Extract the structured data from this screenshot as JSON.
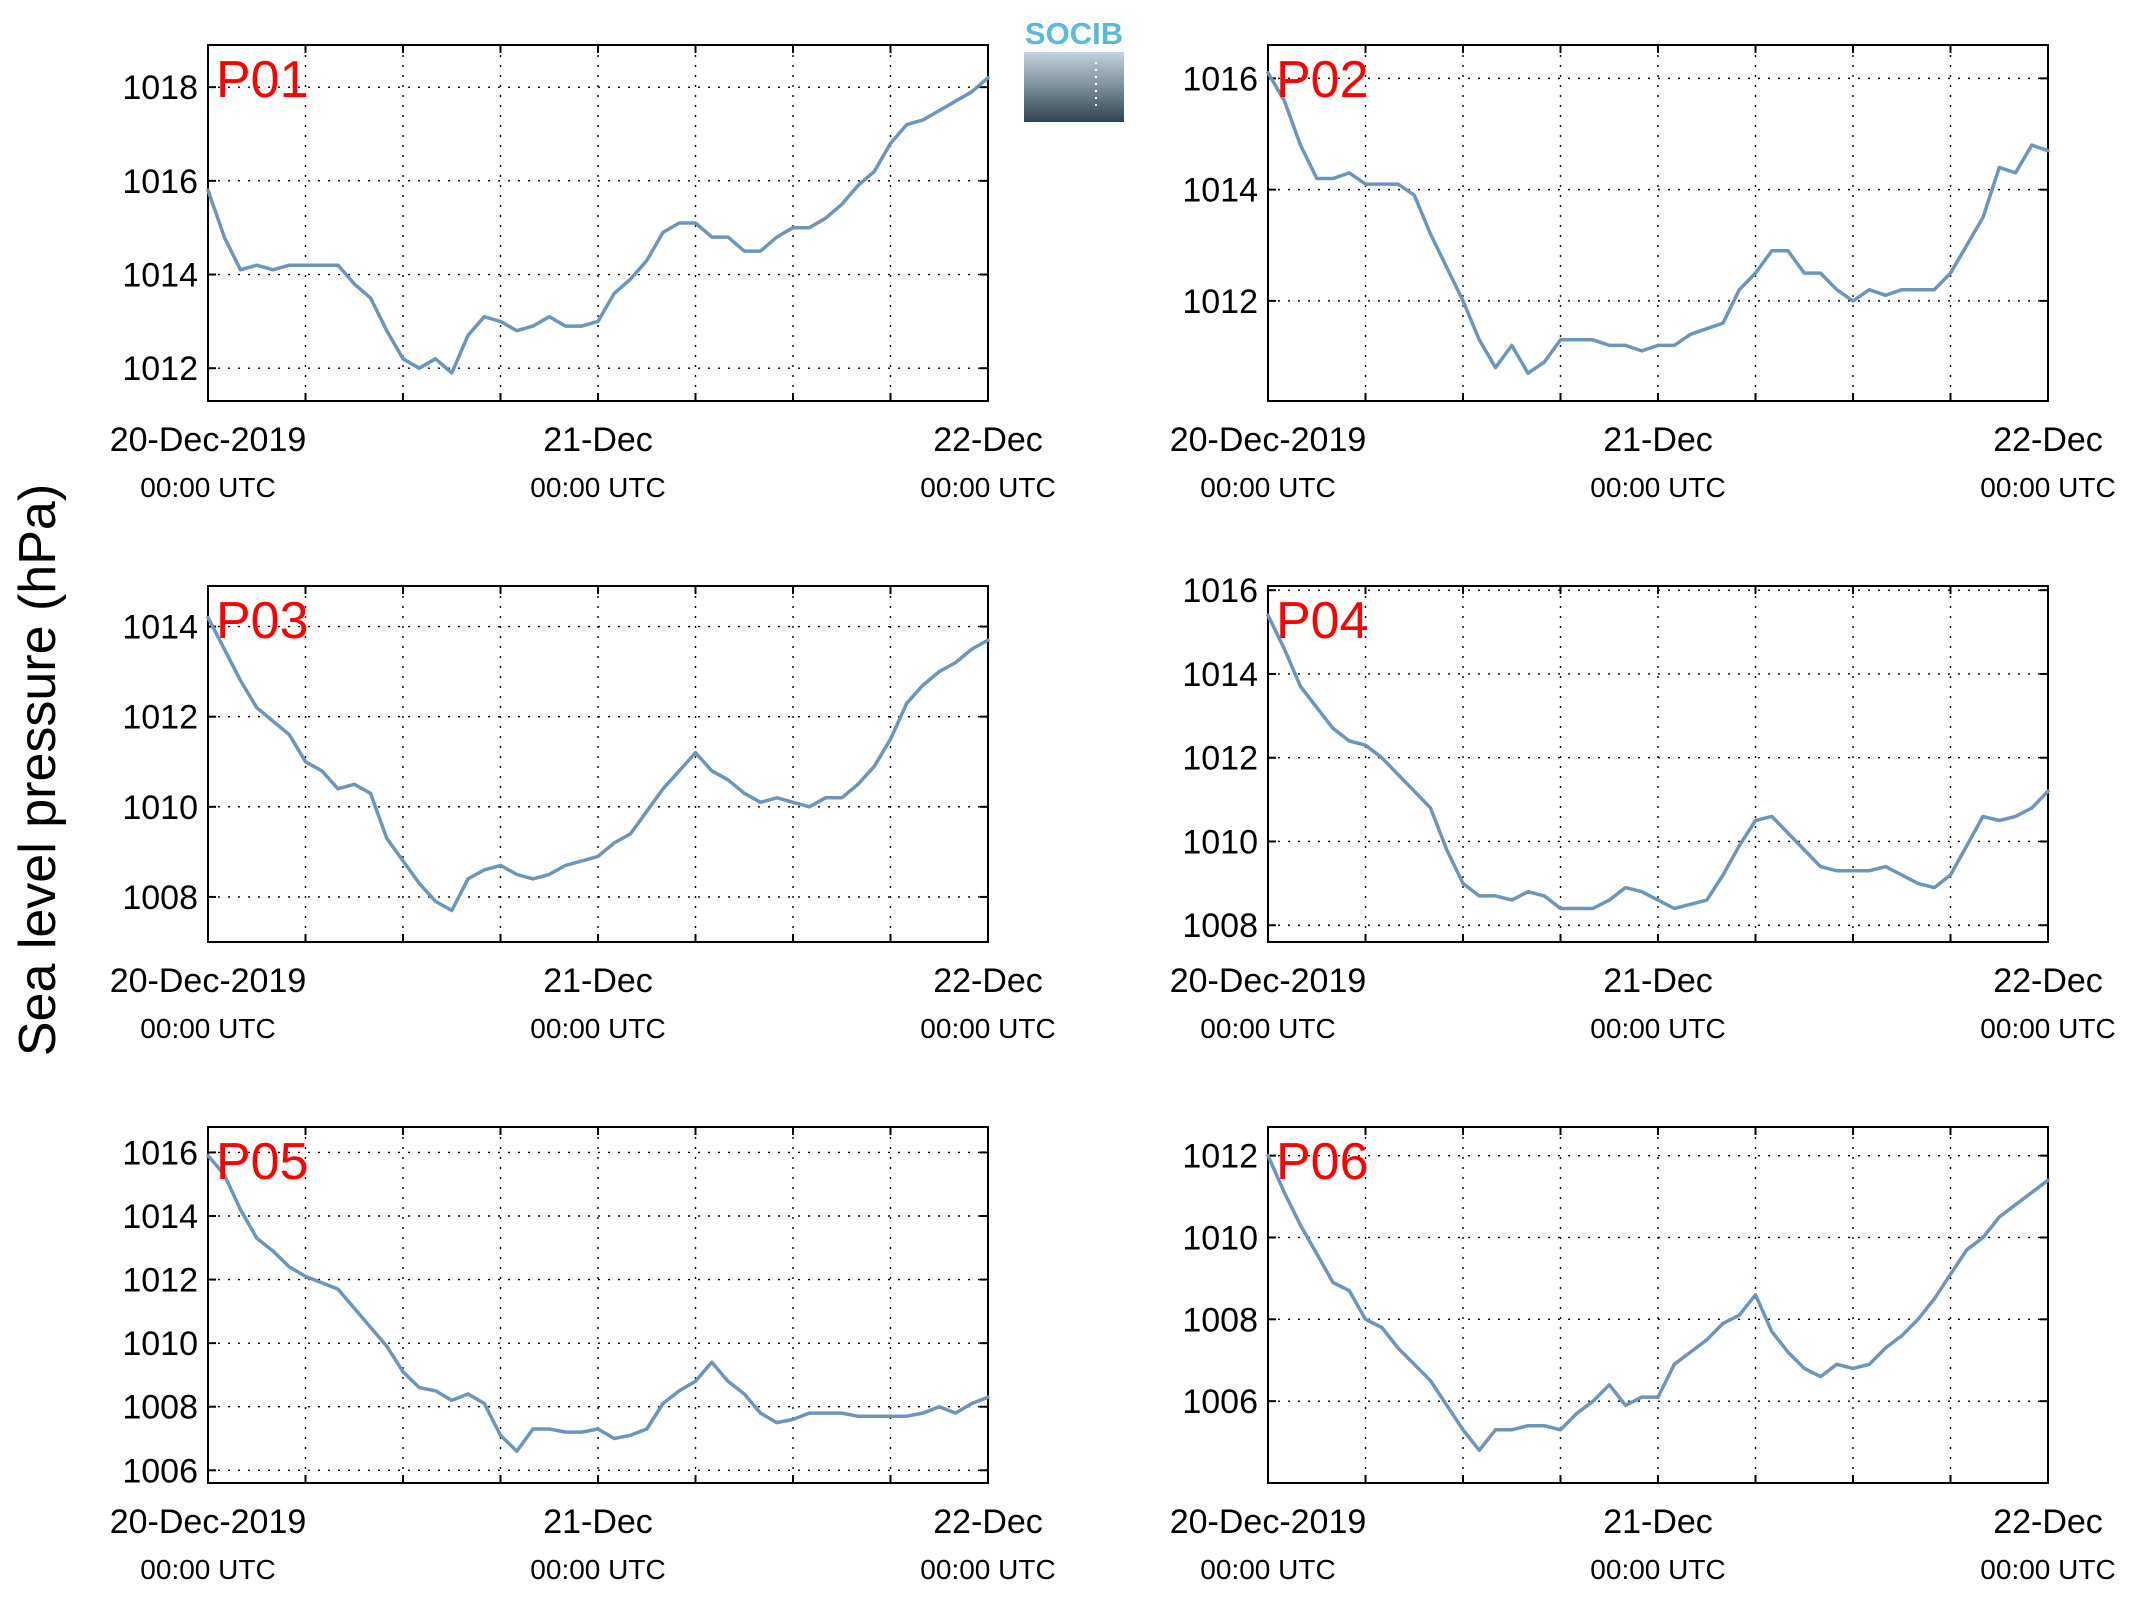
{
  "ylabel": "Sea level pressure (hPa)",
  "logo_text": "SOCIB",
  "colors": {
    "line": "#6b96bc",
    "panel_label": "#ff0000",
    "logo_text": "#5bbad6"
  },
  "x_ticks": [
    {
      "date": "20-Dec-2019",
      "time": "00:00 UTC"
    },
    {
      "date": "21-Dec",
      "time": "00:00 UTC"
    },
    {
      "date": "22-Dec",
      "time": "00:00 UTC"
    }
  ],
  "chart_data": [
    {
      "type": "line",
      "label": "P01",
      "xlim": [
        0,
        48
      ],
      "ylim": [
        1011.3,
        1018.9
      ],
      "yticks": [
        1012,
        1014,
        1016,
        1018
      ],
      "grid": true,
      "x": [
        0,
        1,
        2,
        3,
        4,
        5,
        6,
        7,
        8,
        9,
        10,
        11,
        12,
        13,
        14,
        15,
        16,
        17,
        18,
        19,
        20,
        21,
        22,
        23,
        24,
        25,
        26,
        27,
        28,
        29,
        30,
        31,
        32,
        33,
        34,
        35,
        36,
        37,
        38,
        39,
        40,
        41,
        42,
        43,
        44,
        45,
        46,
        47,
        48
      ],
      "y": [
        1015.8,
        1014.8,
        1014.1,
        1014.2,
        1014.1,
        1014.2,
        1014.2,
        1014.2,
        1014.2,
        1013.8,
        1013.5,
        1012.8,
        1012.2,
        1012.0,
        1012.2,
        1011.9,
        1012.7,
        1013.1,
        1013.0,
        1012.8,
        1012.9,
        1013.1,
        1012.9,
        1012.9,
        1013.0,
        1013.6,
        1013.9,
        1014.3,
        1014.9,
        1015.1,
        1015.1,
        1014.8,
        1014.8,
        1014.5,
        1014.5,
        1014.8,
        1015.0,
        1015.0,
        1015.2,
        1015.5,
        1015.9,
        1016.2,
        1016.8,
        1017.2,
        1017.3,
        1017.5,
        1017.7,
        1017.9,
        1018.2
      ]
    },
    {
      "type": "line",
      "label": "P02",
      "xlim": [
        0,
        48
      ],
      "ylim": [
        1010.2,
        1016.6
      ],
      "yticks": [
        1012,
        1014,
        1016
      ],
      "grid": true,
      "x": [
        0,
        1,
        2,
        3,
        4,
        5,
        6,
        7,
        8,
        9,
        10,
        11,
        12,
        13,
        14,
        15,
        16,
        17,
        18,
        19,
        20,
        21,
        22,
        23,
        24,
        25,
        26,
        27,
        28,
        29,
        30,
        31,
        32,
        33,
        34,
        35,
        36,
        37,
        38,
        39,
        40,
        41,
        42,
        43,
        44,
        45,
        46,
        47,
        48
      ],
      "y": [
        1016.1,
        1015.6,
        1014.8,
        1014.2,
        1014.2,
        1014.3,
        1014.1,
        1014.1,
        1014.1,
        1013.9,
        1013.2,
        1012.6,
        1012.0,
        1011.3,
        1010.8,
        1011.2,
        1010.7,
        1010.9,
        1011.3,
        1011.3,
        1011.3,
        1011.2,
        1011.2,
        1011.1,
        1011.2,
        1011.2,
        1011.4,
        1011.5,
        1011.6,
        1012.2,
        1012.5,
        1012.9,
        1012.9,
        1012.5,
        1012.5,
        1012.2,
        1012.0,
        1012.2,
        1012.1,
        1012.2,
        1012.2,
        1012.2,
        1012.5,
        1013.0,
        1013.5,
        1014.4,
        1014.3,
        1014.8,
        1014.7
      ]
    },
    {
      "type": "line",
      "label": "P03",
      "xlim": [
        0,
        48
      ],
      "ylim": [
        1007.0,
        1014.9
      ],
      "yticks": [
        1008,
        1010,
        1012,
        1014
      ],
      "grid": true,
      "x": [
        0,
        1,
        2,
        3,
        4,
        5,
        6,
        7,
        8,
        9,
        10,
        11,
        12,
        13,
        14,
        15,
        16,
        17,
        18,
        19,
        20,
        21,
        22,
        23,
        24,
        25,
        26,
        27,
        28,
        29,
        30,
        31,
        32,
        33,
        34,
        35,
        36,
        37,
        38,
        39,
        40,
        41,
        42,
        43,
        44,
        45,
        46,
        47,
        48
      ],
      "y": [
        1014.2,
        1013.5,
        1012.8,
        1012.2,
        1011.9,
        1011.6,
        1011.0,
        1010.8,
        1010.4,
        1010.5,
        1010.3,
        1009.3,
        1008.8,
        1008.3,
        1007.9,
        1007.7,
        1008.4,
        1008.6,
        1008.7,
        1008.5,
        1008.4,
        1008.5,
        1008.7,
        1008.8,
        1008.9,
        1009.2,
        1009.4,
        1009.9,
        1010.4,
        1010.8,
        1011.2,
        1010.8,
        1010.6,
        1010.3,
        1010.1,
        1010.2,
        1010.1,
        1010.0,
        1010.2,
        1010.2,
        1010.5,
        1010.9,
        1011.5,
        1012.3,
        1012.7,
        1013.0,
        1013.2,
        1013.5,
        1013.7
      ]
    },
    {
      "type": "line",
      "label": "P04",
      "xlim": [
        0,
        48
      ],
      "ylim": [
        1007.6,
        1016.1
      ],
      "yticks": [
        1008,
        1010,
        1012,
        1014,
        1016
      ],
      "grid": true,
      "x": [
        0,
        1,
        2,
        3,
        4,
        5,
        6,
        7,
        8,
        9,
        10,
        11,
        12,
        13,
        14,
        15,
        16,
        17,
        18,
        19,
        20,
        21,
        22,
        23,
        24,
        25,
        26,
        27,
        28,
        29,
        30,
        31,
        32,
        33,
        34,
        35,
        36,
        37,
        38,
        39,
        40,
        41,
        42,
        43,
        44,
        45,
        46,
        47,
        48
      ],
      "y": [
        1015.4,
        1014.6,
        1013.7,
        1013.2,
        1012.7,
        1012.4,
        1012.3,
        1012.0,
        1011.6,
        1011.2,
        1010.8,
        1009.8,
        1009.0,
        1008.7,
        1008.7,
        1008.6,
        1008.8,
        1008.7,
        1008.4,
        1008.4,
        1008.4,
        1008.6,
        1008.9,
        1008.8,
        1008.6,
        1008.4,
        1008.5,
        1008.6,
        1009.2,
        1009.9,
        1010.5,
        1010.6,
        1010.2,
        1009.8,
        1009.4,
        1009.3,
        1009.3,
        1009.3,
        1009.4,
        1009.2,
        1009.0,
        1008.9,
        1009.2,
        1009.9,
        1010.6,
        1010.5,
        1010.6,
        1010.8,
        1011.2
      ]
    },
    {
      "type": "line",
      "label": "P05",
      "xlim": [
        0,
        48
      ],
      "ylim": [
        1005.6,
        1016.8
      ],
      "yticks": [
        1006,
        1008,
        1010,
        1012,
        1014,
        1016
      ],
      "grid": true,
      "x": [
        0,
        1,
        2,
        3,
        4,
        5,
        6,
        7,
        8,
        9,
        10,
        11,
        12,
        13,
        14,
        15,
        16,
        17,
        18,
        19,
        20,
        21,
        22,
        23,
        24,
        25,
        26,
        27,
        28,
        29,
        30,
        31,
        32,
        33,
        34,
        35,
        36,
        37,
        38,
        39,
        40,
        41,
        42,
        43,
        44,
        45,
        46,
        47,
        48
      ],
      "y": [
        1015.9,
        1015.3,
        1014.2,
        1013.3,
        1012.9,
        1012.4,
        1012.1,
        1011.9,
        1011.7,
        1011.1,
        1010.5,
        1009.9,
        1009.1,
        1008.6,
        1008.5,
        1008.2,
        1008.4,
        1008.1,
        1007.1,
        1006.6,
        1007.3,
        1007.3,
        1007.2,
        1007.2,
        1007.3,
        1007.0,
        1007.1,
        1007.3,
        1008.1,
        1008.5,
        1008.8,
        1009.4,
        1008.8,
        1008.4,
        1007.8,
        1007.5,
        1007.6,
        1007.8,
        1007.8,
        1007.8,
        1007.7,
        1007.7,
        1007.7,
        1007.7,
        1007.8,
        1008.0,
        1007.8,
        1008.1,
        1008.3
      ]
    },
    {
      "type": "line",
      "label": "P06",
      "xlim": [
        0,
        48
      ],
      "ylim": [
        1004.0,
        1012.7
      ],
      "yticks": [
        1006,
        1008,
        1010,
        1012
      ],
      "grid": true,
      "x": [
        0,
        1,
        2,
        3,
        4,
        5,
        6,
        7,
        8,
        9,
        10,
        11,
        12,
        13,
        14,
        15,
        16,
        17,
        18,
        19,
        20,
        21,
        22,
        23,
        24,
        25,
        26,
        27,
        28,
        29,
        30,
        31,
        32,
        33,
        34,
        35,
        36,
        37,
        38,
        39,
        40,
        41,
        42,
        43,
        44,
        45,
        46,
        47,
        48
      ],
      "y": [
        1012.0,
        1011.1,
        1010.3,
        1009.6,
        1008.9,
        1008.7,
        1008.0,
        1007.8,
        1007.3,
        1006.9,
        1006.5,
        1005.9,
        1005.3,
        1004.8,
        1005.3,
        1005.3,
        1005.4,
        1005.4,
        1005.3,
        1005.7,
        1006.0,
        1006.4,
        1005.9,
        1006.1,
        1006.1,
        1006.9,
        1007.2,
        1007.5,
        1007.9,
        1008.1,
        1008.6,
        1007.7,
        1007.2,
        1006.8,
        1006.6,
        1006.9,
        1006.8,
        1006.9,
        1007.3,
        1007.6,
        1008.0,
        1008.5,
        1009.1,
        1009.7,
        1010.0,
        1010.5,
        1010.8,
        1011.1,
        1011.4
      ]
    }
  ]
}
